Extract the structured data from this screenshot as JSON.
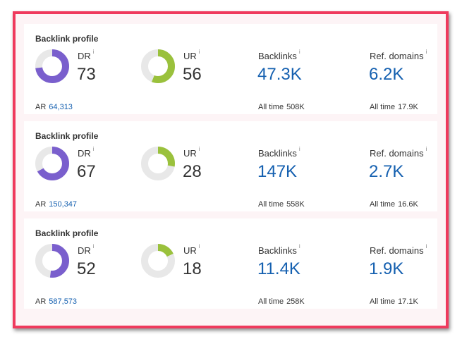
{
  "colors": {
    "dr": "#7a5fcd",
    "ur": "#9ac13c",
    "track": "#e8e8e8",
    "link": "#1560b0",
    "border": "#ef3a5d"
  },
  "profiles": [
    {
      "title": "Backlink profile",
      "dr_label": "DR",
      "dr": "73",
      "dr_value": 73,
      "ar_label": "AR",
      "ar": "64,313",
      "ur_label": "UR",
      "ur": "56",
      "ur_value": 56,
      "backlinks_label": "Backlinks",
      "backlinks": "47.3K",
      "backlinks_alltime_label": "All time",
      "backlinks_alltime": "508K",
      "refdomains_label": "Ref. domains",
      "refdomains": "6.2K",
      "refdomains_alltime_label": "All time",
      "refdomains_alltime": "17.9K",
      "info": "i"
    },
    {
      "title": "Backlink profile",
      "dr_label": "DR",
      "dr": "67",
      "dr_value": 67,
      "ar_label": "AR",
      "ar": "150,347",
      "ur_label": "UR",
      "ur": "28",
      "ur_value": 28,
      "backlinks_label": "Backlinks",
      "backlinks": "147K",
      "backlinks_alltime_label": "All time",
      "backlinks_alltime": "558K",
      "refdomains_label": "Ref. domains",
      "refdomains": "2.7K",
      "refdomains_alltime_label": "All time",
      "refdomains_alltime": "16.6K",
      "info": "i"
    },
    {
      "title": "Backlink profile",
      "dr_label": "DR",
      "dr": "52",
      "dr_value": 52,
      "ar_label": "AR",
      "ar": "587,573",
      "ur_label": "UR",
      "ur": "18",
      "ur_value": 18,
      "backlinks_label": "Backlinks",
      "backlinks": "11.4K",
      "backlinks_alltime_label": "All time",
      "backlinks_alltime": "258K",
      "refdomains_label": "Ref. domains",
      "refdomains": "1.9K",
      "refdomains_alltime_label": "All time",
      "refdomains_alltime": "17.1K",
      "info": "i"
    }
  ]
}
